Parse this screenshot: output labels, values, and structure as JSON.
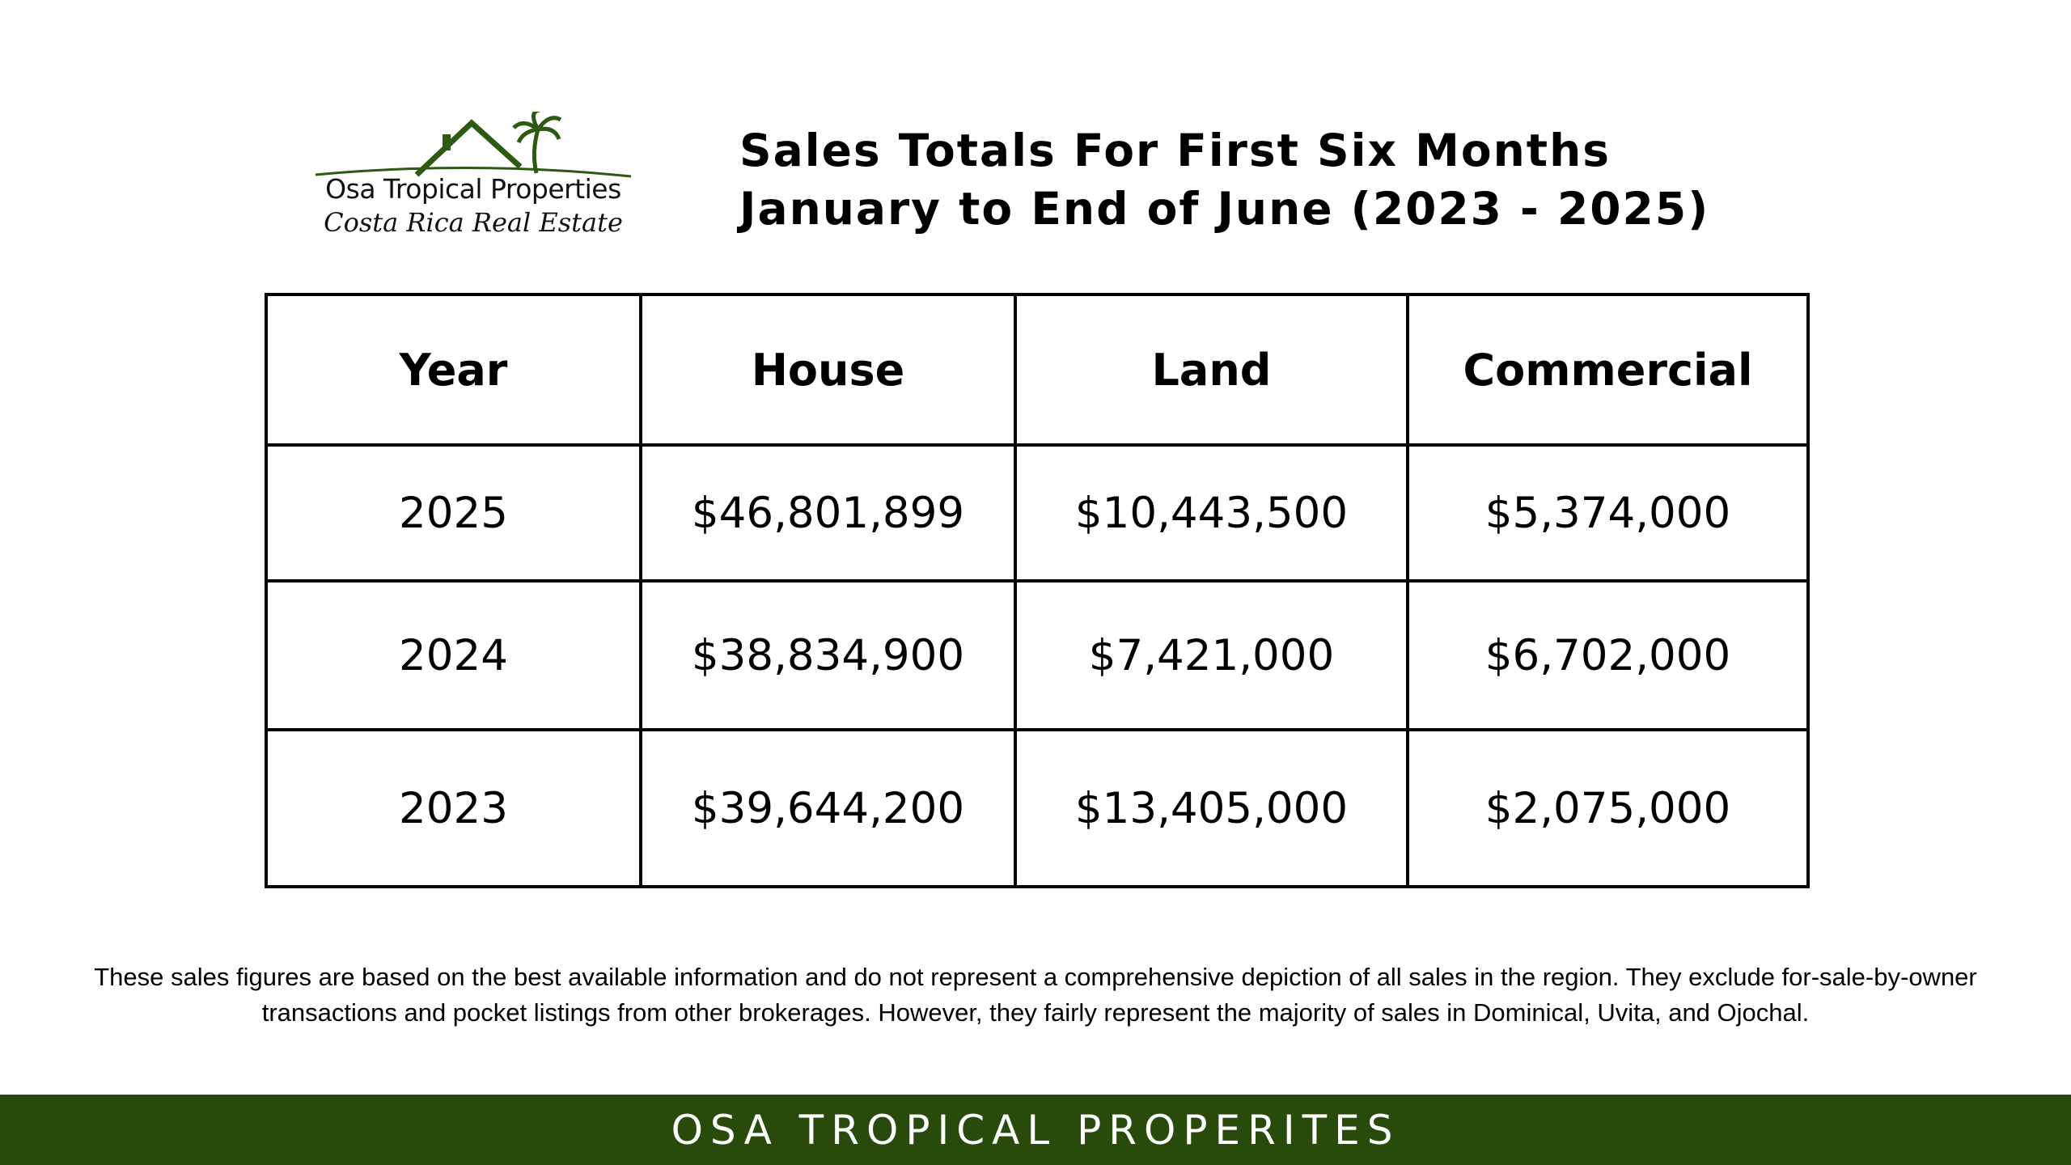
{
  "logo": {
    "name": "Osa Tropical Properties",
    "tagline": "Costa Rica Real Estate"
  },
  "title": {
    "line1": "Sales Totals For First Six Months",
    "line2": "January to End of June (2023 - 2025)"
  },
  "table": {
    "headers": [
      "Year",
      "House",
      "Land",
      "Commercial"
    ],
    "rows": [
      [
        "2025",
        "$46,801,899",
        "$10,443,500",
        "$5,374,000"
      ],
      [
        "2024",
        "$38,834,900",
        "$7,421,000",
        "$6,702,000"
      ],
      [
        "2023",
        "$39,644,200",
        "$13,405,000",
        "$2,075,000"
      ]
    ]
  },
  "disclaimer": {
    "line1": "These sales figures are based on the best available information and do not represent a comprehensive depiction of all sales in the region. They exclude for-sale-by-owner",
    "line2": "transactions and pocket listings from other brokerages. However, they fairly represent the majority of sales in Dominical, Uvita, and Ojochal."
  },
  "footer": {
    "text": "OSA TROPICAL PROPERITES"
  },
  "colors": {
    "brand_green": "#284b0c",
    "logo_green": "#2d5a12",
    "text": "#000000",
    "background": "#ffffff"
  },
  "icons": {
    "logo_mark": "house-roof-palm-tree-icon"
  }
}
